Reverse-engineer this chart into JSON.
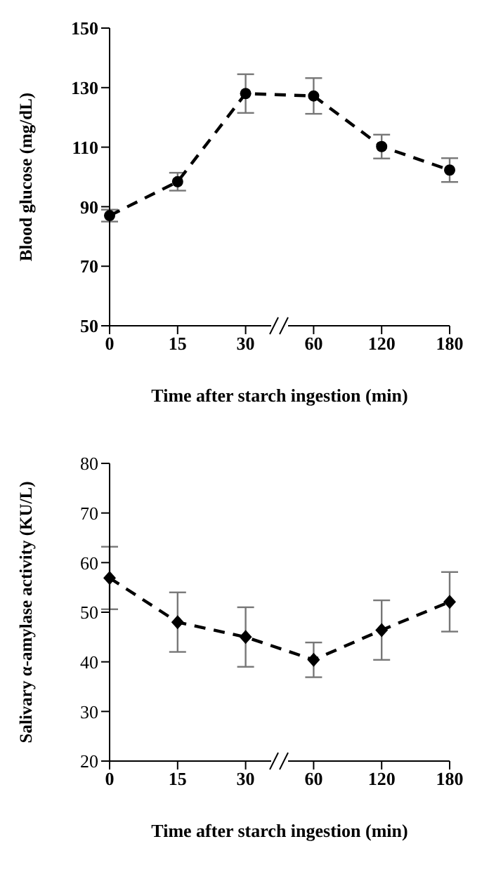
{
  "chart_data": [
    {
      "type": "line",
      "xlabel": "Time after starch ingestion  (min)",
      "ylabel": "Blood glucose (mg/dL)",
      "categories": [
        "0",
        "15",
        "30",
        "60",
        "120",
        "180"
      ],
      "series": [
        {
          "color": "#000000",
          "values": [
            87,
            98.4,
            128,
            127.2,
            110.2,
            102.3
          ],
          "errors": [
            2,
            3,
            6.5,
            6,
            4,
            4
          ]
        }
      ],
      "ylim": [
        50,
        150
      ],
      "yticks": [
        50,
        70,
        90,
        110,
        130,
        150
      ],
      "grid": false,
      "legend": false,
      "marker": "circle",
      "line_style": "dashed"
    },
    {
      "type": "line",
      "xlabel": "Time after starch ingestion  (min)",
      "ylabel": "Salivary α-amylase activity (KU/L)",
      "categories": [
        "0",
        "15",
        "30",
        "60",
        "120",
        "180"
      ],
      "series": [
        {
          "color": "#000000",
          "values": [
            56.9,
            48,
            45,
            40.4,
            46.4,
            52.1
          ],
          "errors": [
            6.3,
            6,
            6,
            3.5,
            6,
            6
          ]
        }
      ],
      "ylim": [
        20,
        80
      ],
      "yticks": [
        20,
        30,
        40,
        50,
        60,
        70,
        80
      ],
      "grid": false,
      "legend": false,
      "marker": "diamond",
      "line_style": "dashed"
    }
  ]
}
